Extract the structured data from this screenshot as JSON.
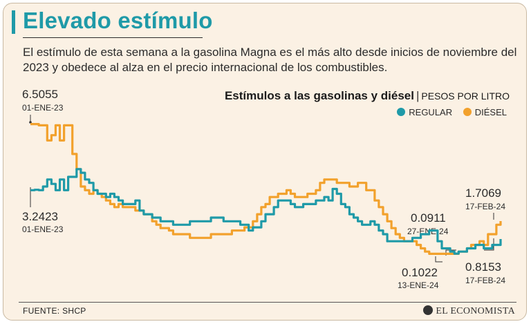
{
  "title": "Elevado estímulo",
  "subtitle": "El estímulo de esta semana a la gasolina Magna es el más alto desde inicios de noviembre del 2023 y obedece al alza en el precio internacional de los combustibles.",
  "chart_title_bold": "Estímulos a las gasolinas y diésel",
  "chart_title_unit": "PESOS POR LITRO",
  "legend": [
    {
      "name": "REGULAR",
      "color": "#1f9aa8"
    },
    {
      "name": "DIÉSEL",
      "color": "#f2a12c"
    }
  ],
  "source": "FUENTE: SHCP",
  "brand": "EL ECONOMISTA",
  "annotations": {
    "diesel_start_value": "6.5055",
    "diesel_start_date": "01-ENE-23",
    "regular_start_value": "3.2423",
    "regular_start_date": "01-ENE-23",
    "diesel_min_value": "0.0911",
    "diesel_min_date": "27-ENE-24",
    "regular_min_value": "0.1022",
    "regular_min_date": "13-ENE-24",
    "diesel_end_value": "1.7069",
    "diesel_end_date": "17-FEB-24",
    "regular_end_value": "0.8153",
    "regular_end_date": "17-FEB-24"
  },
  "chart_data": {
    "type": "line",
    "title": "Estímulos a las gasolinas y diésel",
    "ylabel": "PESOS POR LITRO",
    "xlabel": "",
    "x_range": [
      "01-ENE-23",
      "17-FEB-24"
    ],
    "ylim": [
      0,
      6.6
    ],
    "series": [
      {
        "name": "REGULAR",
        "color": "#1f9aa8",
        "values": [
          3.24,
          3.26,
          3.24,
          3.42,
          3.77,
          3.55,
          3.24,
          3.77,
          3.24,
          3.9,
          3.9,
          4.28,
          4.1,
          3.77,
          3.6,
          3.24,
          3.06,
          3.06,
          2.9,
          3.06,
          2.9,
          2.73,
          2.55,
          2.55,
          2.55,
          2.73,
          2.23,
          2.05,
          2.05,
          1.88,
          1.88,
          1.7,
          1.7,
          1.7,
          1.53,
          1.53,
          1.53,
          1.53,
          1.7,
          1.7,
          1.7,
          1.7,
          1.7,
          1.88,
          1.88,
          1.88,
          1.7,
          1.7,
          1.7,
          1.7,
          1.53,
          1.53,
          1.24,
          1.4,
          1.4,
          1.7,
          2.05,
          2.05,
          2.4,
          2.73,
          2.73,
          2.73,
          2.55,
          2.4,
          2.4,
          2.55,
          2.55,
          2.55,
          2.73,
          2.73,
          2.9,
          2.73,
          3.3,
          3.06,
          2.55,
          2.4,
          2.05,
          1.88,
          1.7,
          1.53,
          1.53,
          1.7,
          1.53,
          1.24,
          1.06,
          0.71,
          0.71,
          0.71,
          0.71,
          0.71,
          0.71,
          0.88,
          0.88,
          1.06,
          1.06,
          1.24,
          1.24,
          0.71,
          0.36,
          0.36,
          0.2,
          0.1,
          0.2,
          0.2,
          0.36,
          0.36,
          0.53,
          0.53,
          0.36,
          0.36,
          0.53,
          0.53,
          0.82
        ]
      },
      {
        "name": "DIÉSEL",
        "color": "#f2a12c",
        "values": [
          6.51,
          6.51,
          6.45,
          6.45,
          5.7,
          5.96,
          6.45,
          5.7,
          6.45,
          6.45,
          5.03,
          4.28,
          3.42,
          3.24,
          3.06,
          3.24,
          3.06,
          2.9,
          2.73,
          2.55,
          2.4,
          2.55,
          2.4,
          2.4,
          2.4,
          2.23,
          2.23,
          2.05,
          2.05,
          1.7,
          1.53,
          1.36,
          1.36,
          1.24,
          1.06,
          1.06,
          1.06,
          1.06,
          0.88,
          0.88,
          0.88,
          0.88,
          0.88,
          1.06,
          1.06,
          1.06,
          1.06,
          1.06,
          1.24,
          1.24,
          1.24,
          1.4,
          1.4,
          1.7,
          2.05,
          2.4,
          2.55,
          2.9,
          2.9,
          3.06,
          3.06,
          3.24,
          3.06,
          2.9,
          2.9,
          2.9,
          3.06,
          3.06,
          3.24,
          3.6,
          3.77,
          3.77,
          3.77,
          3.6,
          3.6,
          3.6,
          3.42,
          3.42,
          3.6,
          3.6,
          3.24,
          3.24,
          2.73,
          2.4,
          2.05,
          1.7,
          1.36,
          1.06,
          0.88,
          0.71,
          0.71,
          0.71,
          0.53,
          0.36,
          0.2,
          0.09,
          0.09,
          0.09,
          0.09,
          0.09,
          0.09,
          0.09,
          0.2,
          0.2,
          0.36,
          0.53,
          0.53,
          0.71,
          0.53,
          1.06,
          1.06,
          1.53,
          1.71
        ]
      }
    ]
  }
}
